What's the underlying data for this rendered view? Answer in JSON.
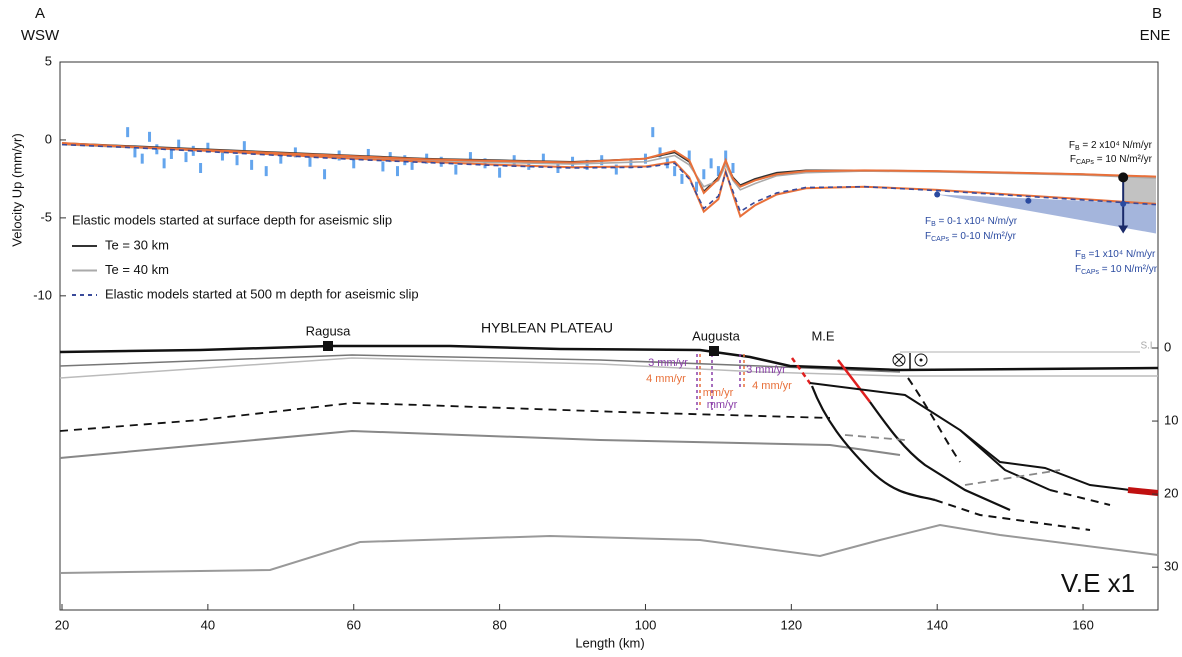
{
  "chart_data": {
    "type": "line",
    "corner_labels": {
      "left_letter": "A",
      "left_dir": "WSW",
      "right_letter": "B",
      "right_dir": "ENE"
    },
    "y_label": "Velocity Up (mm/yr)",
    "x_label": "Length (km)",
    "xlim": [
      20,
      170
    ],
    "xticks": [
      20,
      40,
      60,
      80,
      100,
      120,
      140,
      160
    ],
    "ylim": [
      -12,
      5
    ],
    "yticks": [
      5,
      0,
      -5,
      -10
    ],
    "y2lim": [
      0,
      36
    ],
    "y2ticks": [
      0,
      10,
      20,
      30
    ],
    "legend_title": "Elastic models started at surface depth for aseismic slip",
    "x": [
      20,
      30,
      40,
      50,
      60,
      70,
      80,
      90,
      100,
      104,
      106,
      108,
      110,
      111,
      112,
      113,
      115,
      118,
      122,
      130,
      140,
      150,
      160,
      170
    ],
    "series": [
      {
        "name": "Te = 30 km",
        "color": "#333333",
        "values": [
          -0.2,
          -0.4,
          -0.6,
          -0.8,
          -1.0,
          -1.2,
          -1.3,
          -1.4,
          -1.2,
          -0.8,
          -1.4,
          -3.3,
          -2.4,
          -1.4,
          -2.4,
          -2.9,
          -2.5,
          -2.1,
          -1.95,
          -1.95,
          -2.0,
          -2.1,
          -2.2,
          -2.4
        ]
      },
      {
        "name": "Te = 40 km",
        "color": "#aaaaaa",
        "values": [
          -0.3,
          -0.5,
          -0.7,
          -0.9,
          -1.1,
          -1.3,
          -1.45,
          -1.55,
          -1.4,
          -1.0,
          -1.6,
          -3.0,
          -2.6,
          -1.6,
          -2.6,
          -3.2,
          -2.8,
          -2.3,
          -2.1,
          -2.0,
          -2.05,
          -2.15,
          -2.25,
          -2.45
        ]
      },
      {
        "color": "#e8703a",
        "values": [
          -0.2,
          -0.45,
          -0.7,
          -0.95,
          -1.2,
          -1.4,
          -1.6,
          -1.75,
          -1.7,
          -1.4,
          -2.4,
          -4.6,
          -3.8,
          -2.0,
          -3.5,
          -4.9,
          -4.2,
          -3.5,
          -3.1,
          -3.0,
          -3.2,
          -3.5,
          -3.8,
          -4.1
        ]
      },
      {
        "color": "#e8703a",
        "values": [
          -0.25,
          -0.45,
          -0.65,
          -0.85,
          -1.05,
          -1.25,
          -1.35,
          -1.45,
          -1.2,
          -0.7,
          -1.3,
          -3.4,
          -2.5,
          -1.3,
          -2.5,
          -3.0,
          -2.6,
          -2.2,
          -2.0,
          -1.95,
          -2.0,
          -2.1,
          -2.2,
          -2.35
        ]
      },
      {
        "name": "Elastic models started at 500 m depth for aseismic slip",
        "color": "#3a4a9a",
        "dash": true,
        "values": [
          -0.3,
          -0.5,
          -0.75,
          -1.0,
          -1.25,
          -1.45,
          -1.65,
          -1.8,
          -1.75,
          -1.5,
          -2.5,
          -4.4,
          -3.6,
          -2.1,
          -3.3,
          -4.6,
          -4.0,
          -3.4,
          -3.05,
          -3.0,
          -3.25,
          -3.55,
          -3.85,
          -4.15
        ]
      }
    ],
    "gps": {
      "color": "#3d8ee8",
      "x": [
        29,
        30,
        31,
        32,
        33,
        34,
        35,
        36,
        37,
        38,
        39,
        40,
        42,
        44,
        45,
        46,
        48,
        50,
        52,
        54,
        56,
        58,
        60,
        62,
        64,
        65,
        66,
        67,
        68,
        70,
        72,
        74,
        76,
        78,
        80,
        82,
        84,
        86,
        88,
        90,
        92,
        94,
        96,
        98,
        100,
        101,
        102,
        103,
        104,
        105,
        106,
        107,
        108,
        109,
        110,
        111,
        112
      ],
      "y": [
        0.5,
        -0.8,
        -1.2,
        0.2,
        -0.6,
        -1.5,
        -0.9,
        -0.3,
        -1.1,
        -0.7,
        -1.8,
        -0.5,
        -1.0,
        -1.3,
        -0.4,
        -1.6,
        -2.0,
        -1.2,
        -0.8,
        -1.4,
        -2.2,
        -1.0,
        -1.5,
        -0.9,
        -1.7,
        -1.1,
        -2.0,
        -1.3,
        -1.6,
        -1.2,
        -1.4,
        -1.9,
        -1.1,
        -1.5,
        -2.1,
        -1.3,
        -1.6,
        -1.2,
        -1.8,
        -1.4,
        -1.6,
        -1.3,
        -1.9,
        -1.5,
        -1.2,
        0.5,
        -0.8,
        -1.5,
        -2.0,
        -2.5,
        -1.0,
        -3.0,
        -2.2,
        -1.5,
        -2.0,
        -1.0,
        -1.8
      ]
    },
    "markers": {
      "color": "#2a4aa0",
      "x": [
        140,
        152.5,
        165.5
      ],
      "y": [
        -3.5,
        -3.9,
        -4.1
      ]
    },
    "arrow": {
      "x": 165.5,
      "y": [
        -2.4,
        -6
      ]
    },
    "annotations": [
      {
        "base": "F",
        "sub": "B",
        "rest": " = 2 x10⁴ N/m/yr"
      },
      {
        "base": "F",
        "sub": "CAPs",
        "rest": " = 10 N/m²/yr"
      },
      {
        "base": "F",
        "sub": "B",
        "rest": " = 0-1 x10⁴ N/m/yr"
      },
      {
        "base": "F",
        "sub": "CAPs",
        "rest": " = 0-10 N/m²/yr"
      },
      {
        "base": "F",
        "sub": "B",
        "rest": " =1 x10⁴ N/m/yr"
      },
      {
        "base": "F",
        "sub": "CAPs",
        "rest": " = 10 N/m²/yr"
      }
    ],
    "section_labels": {
      "ragusa": "Ragusa",
      "plateau": "HYBLEAN PLATEAU",
      "augusta": "Augusta",
      "me": "M.E",
      "sl": "S.L",
      "ve": "V.E x1"
    },
    "rates": [
      "3 mm/yr",
      "4 mm/yr",
      "mm/yr",
      "mm/yr",
      "3 mm/yr",
      "4 mm/yr"
    ]
  }
}
